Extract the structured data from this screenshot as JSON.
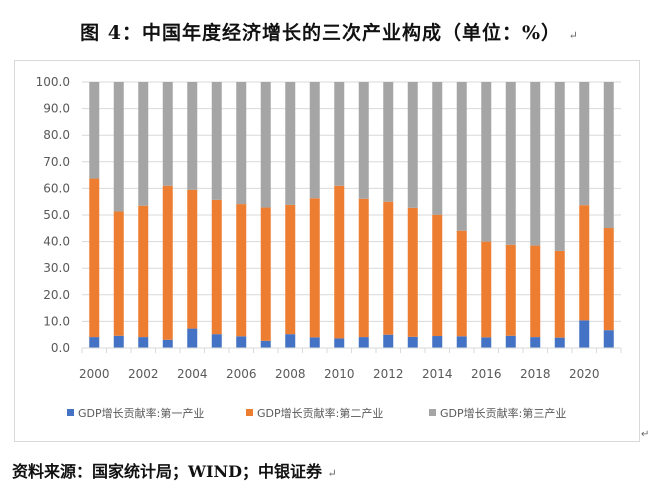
{
  "title": "图 4：中国年度经济增长的三次产业构成（单位：%）",
  "return_mark": "↵",
  "source": "资料来源：国家统计局；WIND；中银证券",
  "chart_data": {
    "type": "bar",
    "stacked": true,
    "categories": [
      "2000",
      "2001",
      "2002",
      "2003",
      "2004",
      "2005",
      "2006",
      "2007",
      "2008",
      "2009",
      "2010",
      "2011",
      "2012",
      "2013",
      "2014",
      "2015",
      "2016",
      "2017",
      "2018",
      "2019",
      "2020",
      "2021"
    ],
    "x_tick_labels": [
      "2000",
      "2002",
      "2004",
      "2006",
      "2008",
      "2010",
      "2012",
      "2014",
      "2016",
      "2018",
      "2020"
    ],
    "y_tick_labels": [
      "0.0",
      "10.0",
      "20.0",
      "30.0",
      "40.0",
      "50.0",
      "60.0",
      "70.0",
      "80.0",
      "90.0",
      "100.0"
    ],
    "ylim": [
      0,
      100
    ],
    "grid": true,
    "legend_position": "bottom",
    "series": [
      {
        "name": "GDP增长贡献率:第一产业",
        "color": "#4472c4",
        "values": [
          4.1,
          4.6,
          4.1,
          3.1,
          7.3,
          5.2,
          4.4,
          2.7,
          5.2,
          4.0,
          3.6,
          4.1,
          5.0,
          4.2,
          4.5,
          4.4,
          4.0,
          4.6,
          4.1,
          3.9,
          10.4,
          6.7
        ]
      },
      {
        "name": "GDP增长贡献率:第二产业",
        "color": "#ed7d31",
        "values": [
          59.6,
          46.7,
          49.4,
          57.9,
          52.2,
          50.5,
          49.7,
          50.1,
          48.6,
          52.3,
          57.4,
          52.0,
          50.0,
          48.5,
          45.6,
          39.7,
          36.0,
          34.2,
          34.4,
          32.6,
          43.3,
          38.4
        ]
      },
      {
        "name": "GDP增长贡献率:第三产业",
        "color": "#a5a5a5",
        "values": [
          36.3,
          48.7,
          46.5,
          39.0,
          40.5,
          44.3,
          45.9,
          47.2,
          46.2,
          43.7,
          39.0,
          43.9,
          45.0,
          47.3,
          49.9,
          55.9,
          60.0,
          61.2,
          61.5,
          63.5,
          46.3,
          54.9
        ]
      }
    ]
  }
}
